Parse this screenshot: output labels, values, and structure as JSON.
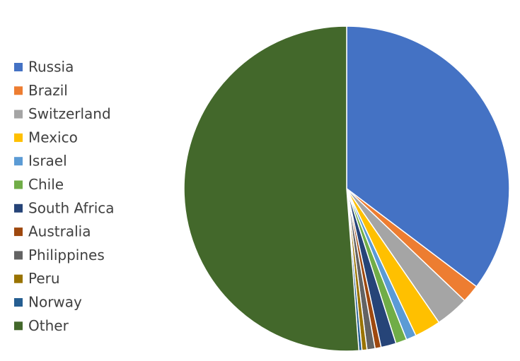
{
  "chart_data": {
    "type": "pie",
    "categories": [
      "Russia",
      "Brazil",
      "Switzerland",
      "Mexico",
      "Israel",
      "Chile",
      "South Africa",
      "Australia",
      "Philippines",
      "Peru",
      "Norway",
      "Other"
    ],
    "values": [
      35.3,
      1.8,
      3.3,
      2.6,
      1.0,
      1.1,
      1.5,
      0.6,
      0.8,
      0.5,
      0.3,
      51.2
    ],
    "colors": [
      "#4472c4",
      "#ed7d31",
      "#a5a5a5",
      "#ffc000",
      "#5b9bd5",
      "#70ad47",
      "#264478",
      "#9e480e",
      "#636363",
      "#997300",
      "#255e91",
      "#43682b"
    ],
    "legend": "left"
  }
}
